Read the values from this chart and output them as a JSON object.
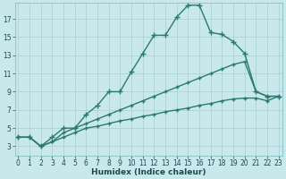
{
  "xlabel": "Humidex (Indice chaleur)",
  "x_values": [
    0,
    1,
    2,
    3,
    4,
    5,
    6,
    7,
    8,
    9,
    10,
    11,
    12,
    13,
    14,
    15,
    16,
    17,
    18,
    19,
    20,
    21,
    22,
    23
  ],
  "series": [
    {
      "y": [
        4.0,
        4.0,
        3.0,
        4.0,
        5.0,
        5.0,
        6.5,
        7.5,
        9.0,
        9.0,
        11.2,
        13.2,
        15.2,
        15.2,
        17.2,
        18.5,
        18.5,
        15.5,
        15.3,
        14.5,
        13.2,
        9.0,
        8.5,
        8.5
      ],
      "color": "#2a7a72",
      "marker": "+",
      "markersize": 4.0,
      "linewidth": 1.0
    },
    {
      "y": [
        4.0,
        4.0,
        3.0,
        3.5,
        4.5,
        5.0,
        5.5,
        6.0,
        6.5,
        7.0,
        7.5,
        8.0,
        8.5,
        9.0,
        9.5,
        10.0,
        10.5,
        11.0,
        11.5,
        12.0,
        12.3,
        9.0,
        8.5,
        8.5
      ],
      "color": "#2a7a72",
      "marker": "+",
      "markersize": 3.5,
      "linewidth": 1.0
    },
    {
      "y": [
        4.0,
        4.0,
        3.0,
        3.5,
        4.0,
        4.5,
        5.0,
        5.2,
        5.5,
        5.8,
        6.0,
        6.3,
        6.5,
        6.8,
        7.0,
        7.2,
        7.5,
        7.7,
        8.0,
        8.2,
        8.3,
        8.3,
        8.0,
        8.5
      ],
      "color": "#2a7a72",
      "marker": "+",
      "markersize": 3.5,
      "linewidth": 1.0
    }
  ],
  "xlim": [
    -0.3,
    23.3
  ],
  "ylim": [
    2.0,
    18.8
  ],
  "yticks": [
    3,
    5,
    7,
    9,
    11,
    13,
    15,
    17
  ],
  "xticks": [
    0,
    1,
    2,
    3,
    4,
    5,
    6,
    7,
    8,
    9,
    10,
    11,
    12,
    13,
    14,
    15,
    16,
    17,
    18,
    19,
    20,
    21,
    22,
    23
  ],
  "bg_color": "#c8e8ec",
  "grid_color": "#a8cdd2",
  "line_color": "#2a7a72",
  "tick_fontsize": 5.5,
  "label_fontsize": 6.5
}
